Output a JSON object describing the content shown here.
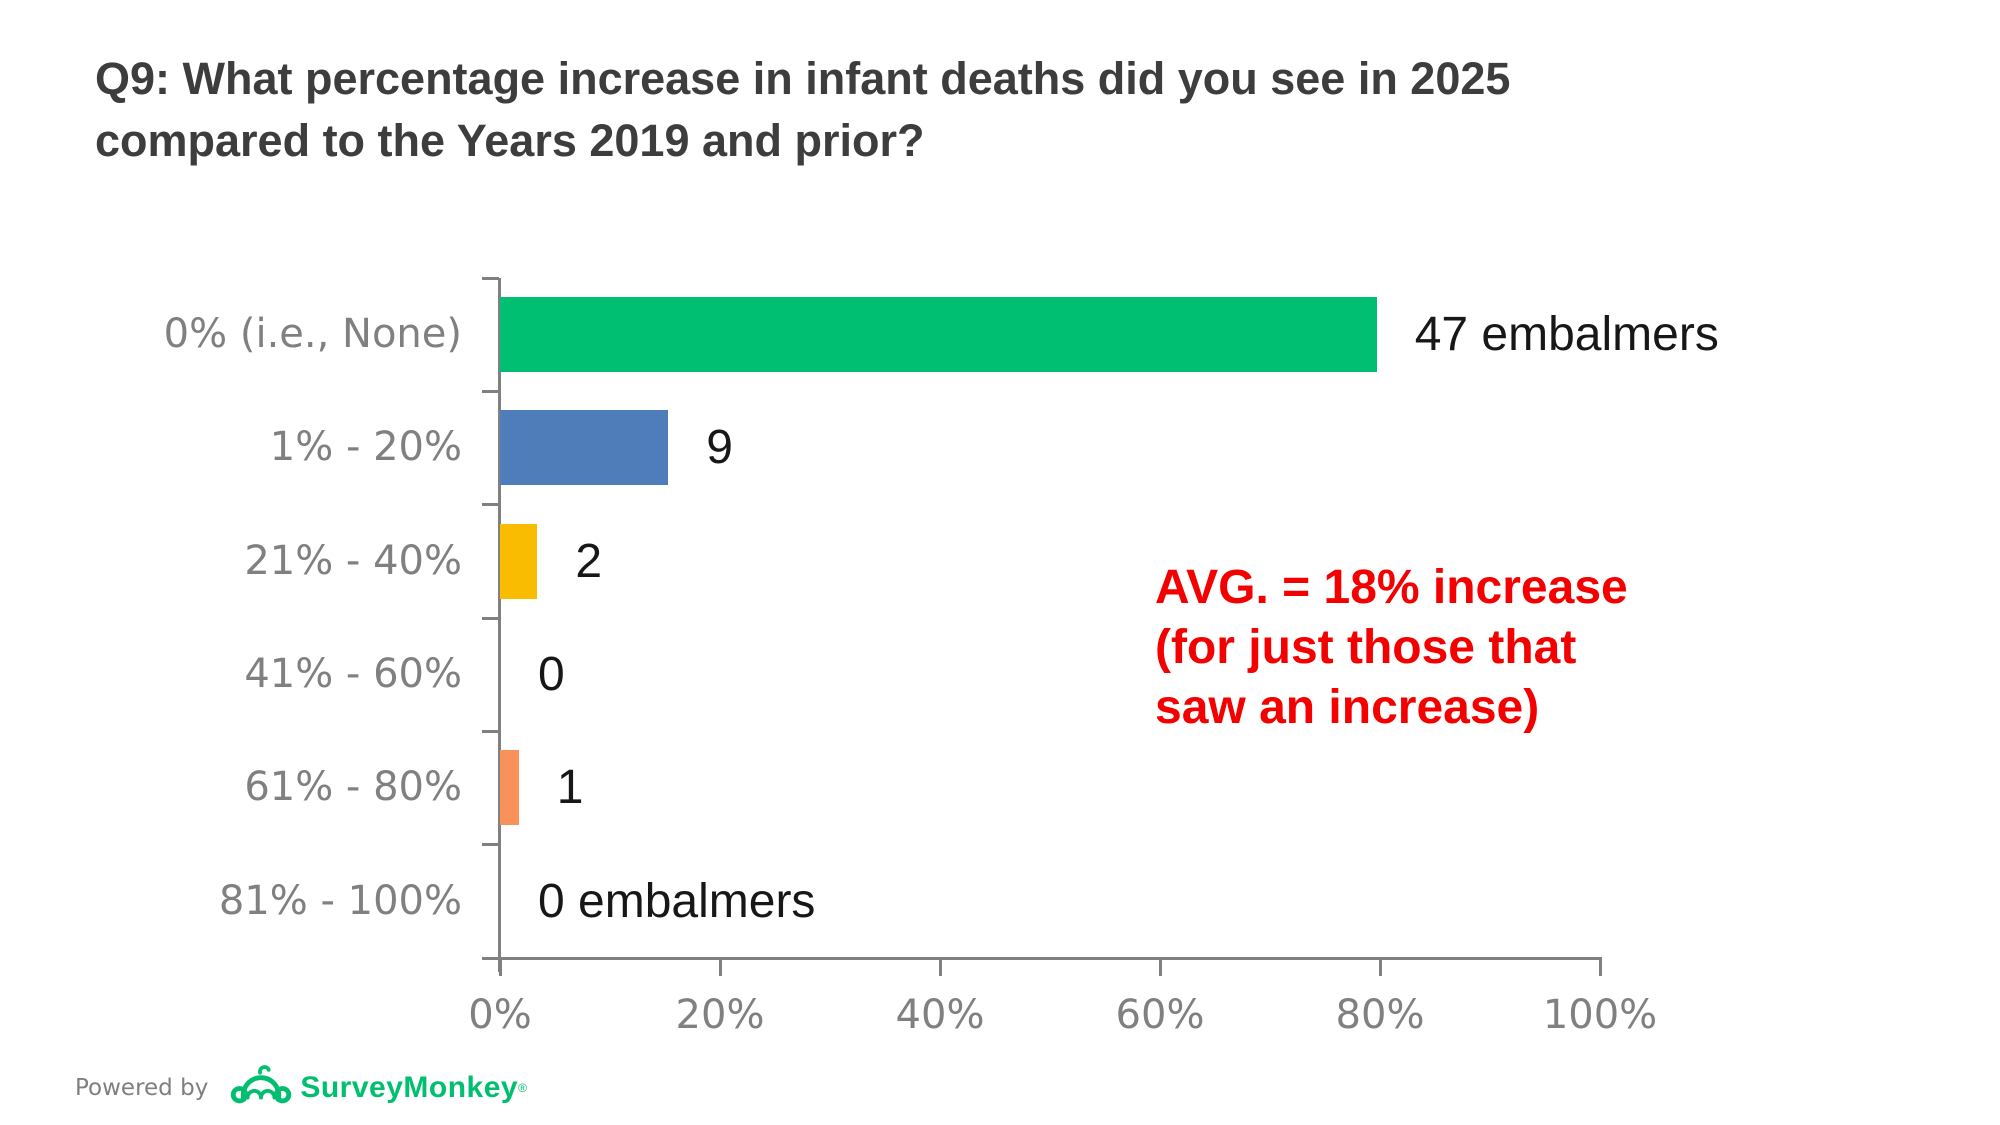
{
  "title_lines": [
    "Q9: What percentage increase in infant deaths did you see in 2025",
    "compared to the Years 2019 and prior?"
  ],
  "chart_data": {
    "type": "bar",
    "orientation": "horizontal",
    "title": "Q9: What percentage increase in infant deaths did you see in 2025 compared to the Years 2019 and prior?",
    "categories": [
      "0% (i.e., None)",
      "1% - 20%",
      "21% - 40%",
      "41% - 60%",
      "61% - 80%",
      "81% - 100%"
    ],
    "values": [
      47,
      9,
      2,
      0,
      1,
      0
    ],
    "value_labels": [
      "47 embalmers",
      "9",
      "2",
      "0",
      "1",
      "0 embalmers"
    ],
    "percent_of_axis": [
      79.7,
      15.3,
      3.4,
      0,
      1.7,
      0
    ],
    "bar_colors": [
      "#00BE72",
      "#4E7DBA",
      "#F9BC01",
      "",
      "#F9915A",
      ""
    ],
    "x_tick_labels": [
      "0%",
      "20%",
      "40%",
      "60%",
      "80%",
      "100%"
    ],
    "xlim": [
      0,
      100
    ],
    "grid": false,
    "legend": false,
    "axis_color": "#808080",
    "category_label_color": "#808080",
    "value_label_color": "#171717"
  },
  "annotation": {
    "lines": [
      "AVG. = 18% increase",
      "(for just those that",
      "saw an increase)"
    ],
    "color": "#F40000"
  },
  "footer": {
    "powered_by": "Powered by",
    "brand": "SurveyMonkey",
    "trademark": "®",
    "brand_color": "#00BF6F"
  }
}
